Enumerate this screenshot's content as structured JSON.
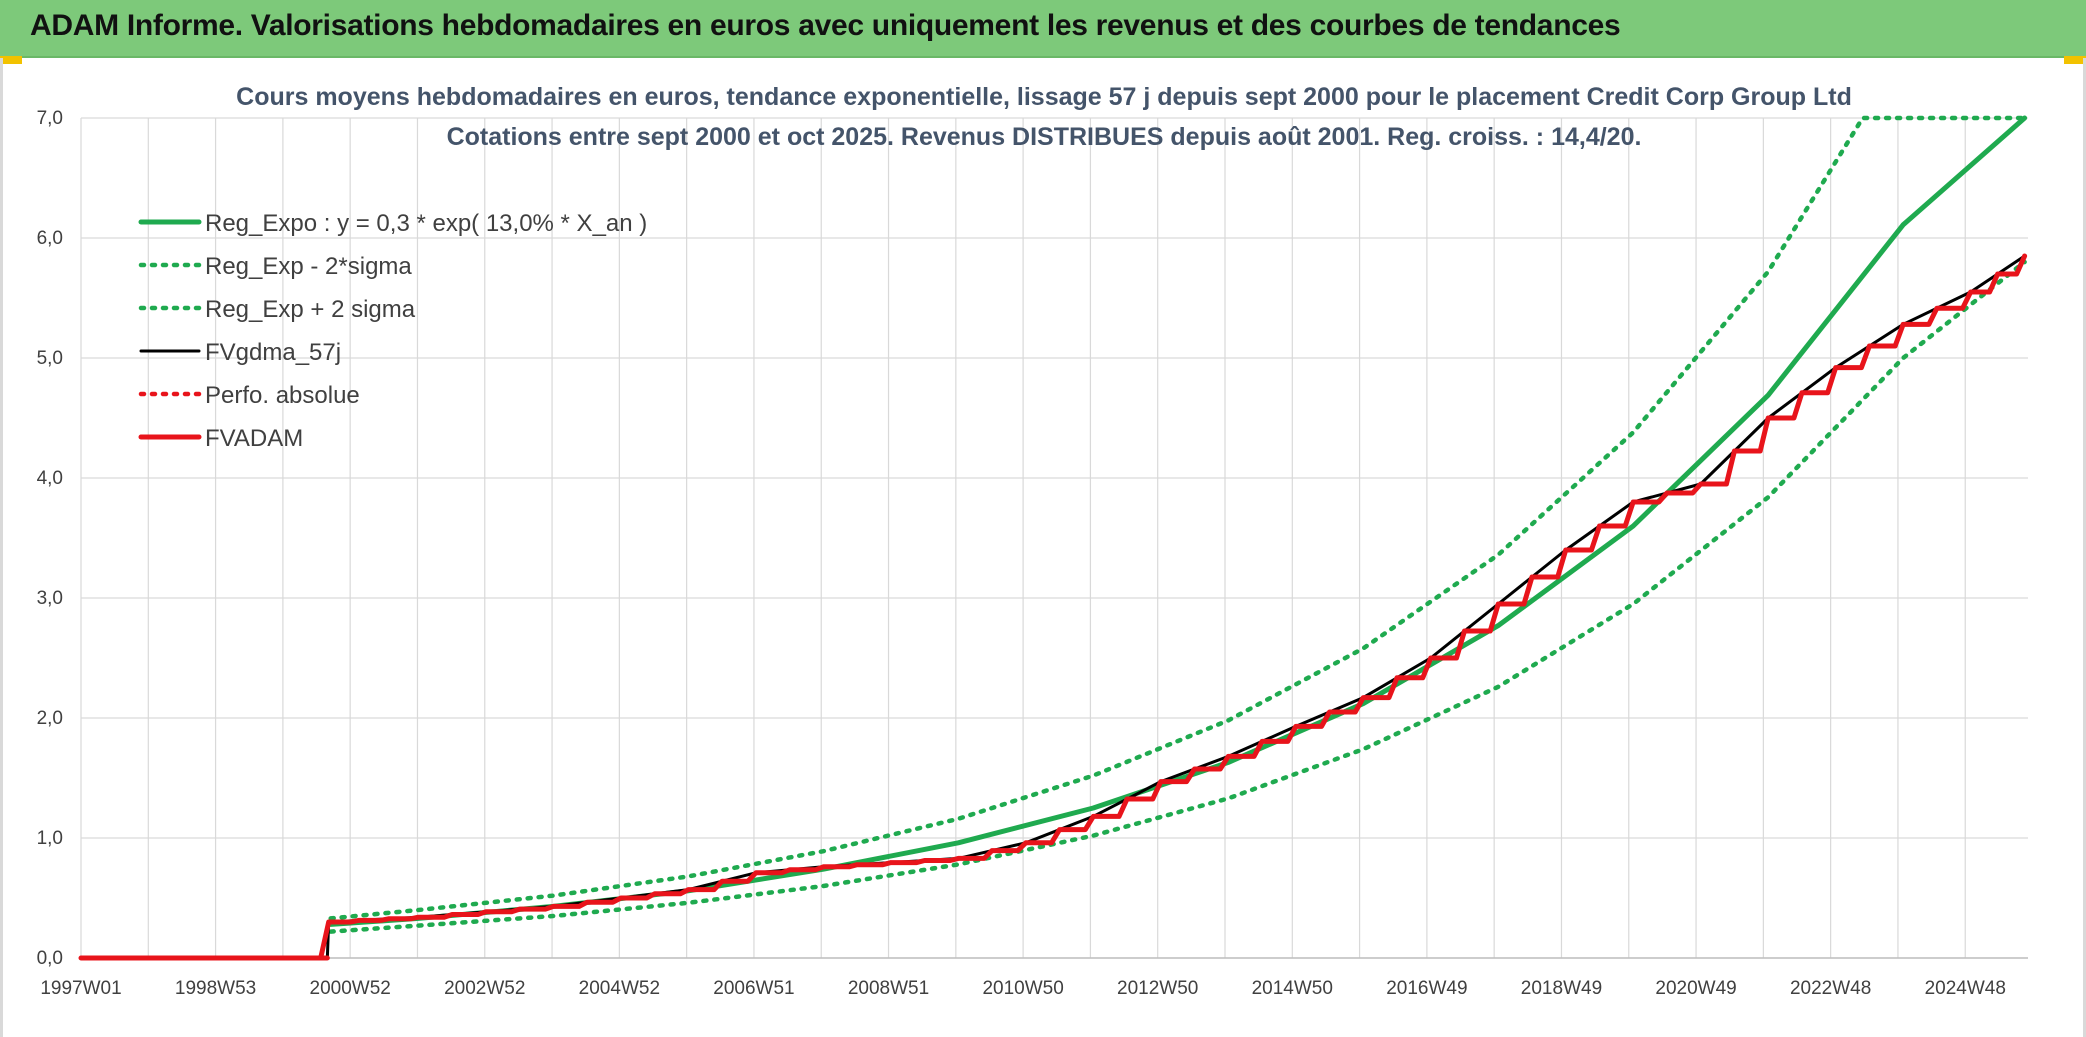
{
  "header": {
    "title": "ADAM Informe. Valorisations hebdomadaires en euros avec uniquement les revenus et des courbes de tendances"
  },
  "colors": {
    "banner": "#7dc97a",
    "reg_expo": "#1faa4f",
    "fvgdma": "#000000",
    "fvadam": "#e8141b",
    "grid": "#d9d9d9"
  },
  "chart_data": {
    "type": "line",
    "title": "Cours moyens hebdomadaires en euros, tendance exponentielle, lissage 57 j depuis sept 2000 pour le placement Credit Corp Group Ltd",
    "subtitle": "Cotations entre sept 2000 et oct 2025. Revenus DISTRIBUES depuis août 2001. Reg. croiss. : 14,4/20.",
    "xlabel": "",
    "ylabel": "",
    "ylim": [
      0,
      7
    ],
    "grid": true,
    "legend_position": "top-left",
    "y_ticks": [
      "0,0",
      "1,0",
      "2,0",
      "3,0",
      "4,0",
      "5,0",
      "6,0",
      "7,0"
    ],
    "x_ticks": [
      "1997W01",
      "1998W53",
      "2000W52",
      "2002W52",
      "2004W52",
      "2006W51",
      "2008W51",
      "2010W50",
      "2012W50",
      "2014W50",
      "2016W49",
      "2018W49",
      "2020W49",
      "2022W48",
      "2024W48"
    ],
    "series": [
      {
        "name": "Reg_Expo : y = 0,3 * exp( 13,0% *  X_an )",
        "style": "solid-thick",
        "color": "#1faa4f",
        "x": [
          2000.7,
          2002,
          2004,
          2006,
          2008,
          2010,
          2012,
          2014,
          2016,
          2018,
          2020,
          2022,
          2024,
          2025.8
        ],
        "y": [
          0.28,
          0.33,
          0.43,
          0.56,
          0.74,
          0.96,
          1.25,
          1.63,
          2.12,
          2.77,
          3.6,
          4.69,
          6.11,
          7.0
        ]
      },
      {
        "name": "Reg_Exp - 2*sigma",
        "style": "dotted",
        "color": "#1faa4f",
        "x": [
          2000.7,
          2002,
          2004,
          2006,
          2008,
          2010,
          2012,
          2014,
          2016,
          2018,
          2020,
          2022,
          2024,
          2025.8
        ],
        "y": [
          0.22,
          0.27,
          0.35,
          0.46,
          0.6,
          0.78,
          1.02,
          1.33,
          1.74,
          2.26,
          2.95,
          3.84,
          5.0,
          5.8
        ]
      },
      {
        "name": "Reg_Exp + 2 sigma",
        "style": "dotted",
        "color": "#1faa4f",
        "x": [
          2000.7,
          2002,
          2004,
          2006,
          2008,
          2010,
          2012,
          2014,
          2016,
          2018,
          2020,
          2022,
          2023.4,
          2025.8
        ],
        "y": [
          0.33,
          0.4,
          0.52,
          0.68,
          0.89,
          1.16,
          1.52,
          1.98,
          2.58,
          3.36,
          4.38,
          5.72,
          7.0,
          7.0
        ]
      },
      {
        "name": "FVgdma_57j",
        "style": "solid",
        "color": "#000000",
        "x": [
          1997.0,
          2000.65,
          2000.67,
          2002,
          2004,
          2006,
          2007,
          2008,
          2010,
          2011,
          2012,
          2013,
          2014,
          2015,
          2016,
          2017,
          2018,
          2019,
          2020,
          2021,
          2022,
          2023,
          2024,
          2025,
          2025.8
        ],
        "y": [
          0.0,
          0.0,
          0.3,
          0.34,
          0.43,
          0.57,
          0.71,
          0.76,
          0.83,
          0.96,
          1.18,
          1.47,
          1.68,
          1.93,
          2.17,
          2.5,
          2.95,
          3.4,
          3.8,
          3.95,
          4.5,
          4.92,
          5.28,
          5.55,
          5.85
        ]
      },
      {
        "name": "Perfo. absolue",
        "style": "dotted",
        "color": "#e8141b",
        "x": [],
        "y": []
      },
      {
        "name": "FVADAM",
        "style": "step-thick",
        "color": "#e8141b",
        "x": [
          1997.0,
          2000.65,
          2000.67,
          2002,
          2004,
          2006,
          2007,
          2008,
          2010,
          2011,
          2012,
          2013,
          2014,
          2015,
          2016,
          2017,
          2018,
          2019,
          2020,
          2021,
          2022,
          2023,
          2024,
          2025,
          2025.8
        ],
        "y": [
          0.0,
          0.0,
          0.3,
          0.34,
          0.43,
          0.57,
          0.71,
          0.76,
          0.83,
          0.96,
          1.18,
          1.47,
          1.68,
          1.93,
          2.17,
          2.5,
          2.95,
          3.4,
          3.8,
          3.95,
          4.5,
          4.92,
          5.28,
          5.55,
          5.85
        ]
      }
    ]
  }
}
